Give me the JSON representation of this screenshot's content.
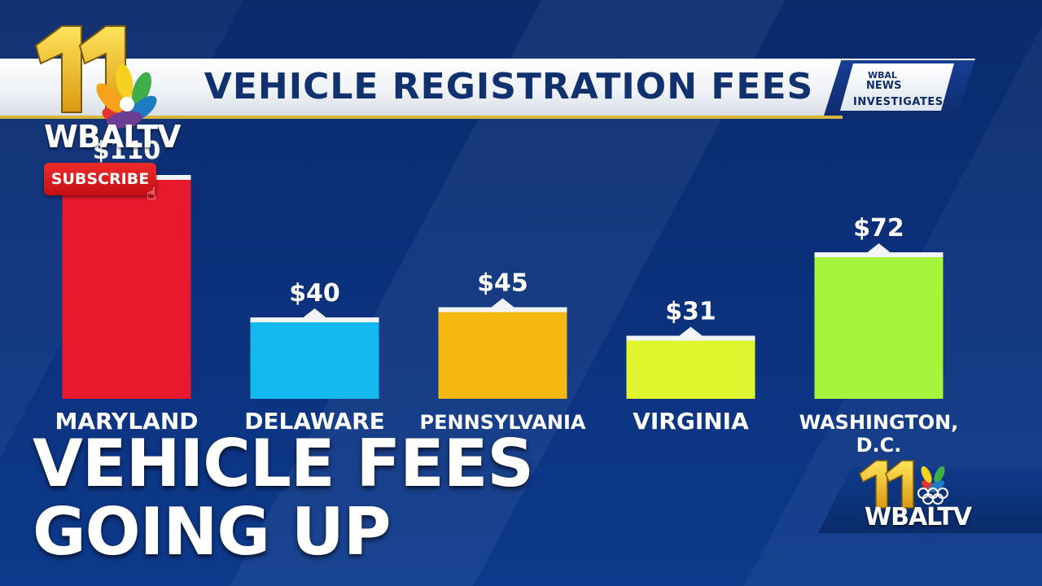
{
  "banner": {
    "title": "VEHICLE REGISTRATION FEES",
    "badge_wbal": "WBAL",
    "badge_news": "NEWS",
    "badge_label": "INVESTIGATES"
  },
  "branding": {
    "channel_number": "11",
    "logo_text": "WBALTV",
    "subscribe_label": "SUBSCRIBE"
  },
  "headline": {
    "line1": "VEHICLE FEES",
    "line2": "GOING UP"
  },
  "chart_data": {
    "type": "bar",
    "categories": [
      "MARYLAND",
      "DELAWARE",
      "PENNSYLVANIA",
      "VIRGINIA",
      "WASHINGTON, D.C."
    ],
    "values": [
      110,
      40,
      45,
      31,
      72
    ],
    "value_labels": [
      "$110",
      "$40",
      "$45",
      "$31",
      "$72"
    ],
    "colors": [
      "#e8192c",
      "#14b9f0",
      "#f5b80e",
      "#dff52d",
      "#a6f53c"
    ],
    "ylim": [
      0,
      110
    ],
    "grid": false,
    "legend": "none"
  }
}
